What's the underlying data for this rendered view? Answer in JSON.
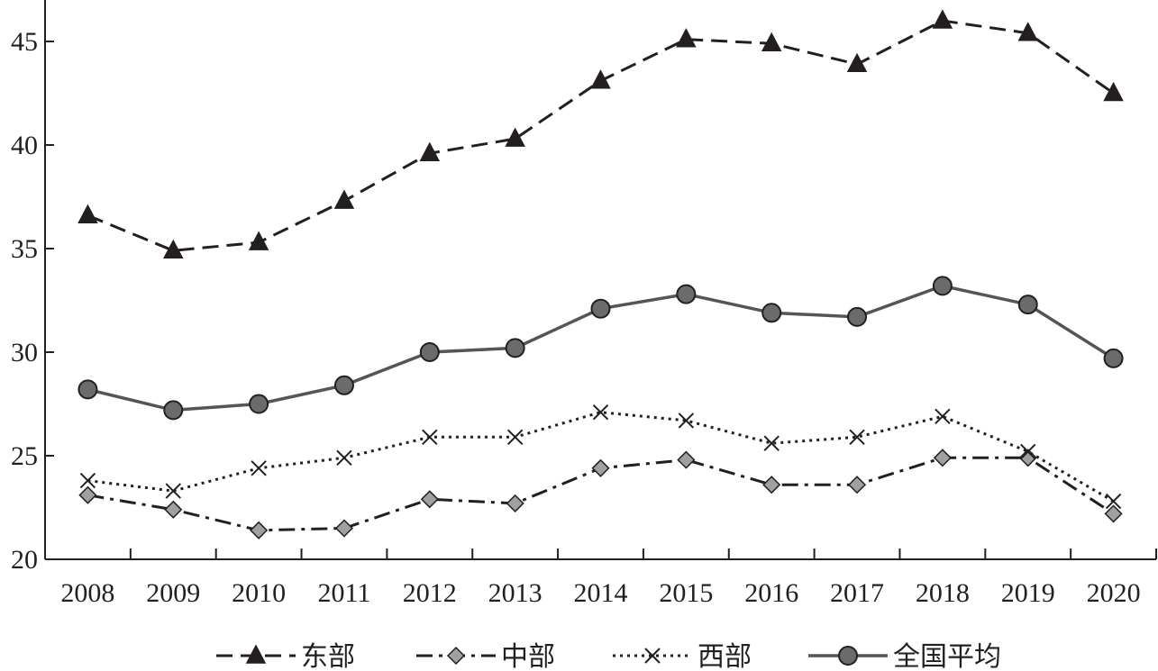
{
  "chart_data": {
    "type": "line",
    "x": [
      "2008",
      "2009",
      "2010",
      "2011",
      "2012",
      "2013",
      "2014",
      "2015",
      "2016",
      "2017",
      "2018",
      "2019",
      "2020"
    ],
    "ylim": [
      20,
      47
    ],
    "yticks": [
      20,
      25,
      30,
      35,
      40,
      45
    ],
    "grid": false,
    "legend_position": "bottom",
    "series": [
      {
        "name": "东部",
        "marker": "triangle",
        "dash": "long-dash",
        "color": "#231f20",
        "values": [
          36.6,
          34.9,
          35.3,
          37.3,
          39.6,
          40.3,
          43.1,
          45.1,
          44.9,
          43.9,
          46.0,
          45.4,
          42.5
        ]
      },
      {
        "name": "中部",
        "marker": "diamond",
        "dash": "dash-dot",
        "color": "#231f20",
        "marker_fill": "#a0a0a0",
        "values": [
          23.1,
          22.4,
          21.4,
          21.5,
          22.9,
          22.7,
          24.4,
          24.8,
          23.6,
          23.6,
          24.9,
          24.9,
          22.2
        ]
      },
      {
        "name": "西部",
        "marker": "x",
        "dash": "dotted",
        "color": "#231f20",
        "values": [
          23.8,
          23.3,
          24.4,
          24.9,
          25.9,
          25.9,
          27.1,
          26.7,
          25.6,
          25.9,
          26.9,
          25.2,
          22.8
        ]
      },
      {
        "name": "全国平均",
        "marker": "circle",
        "dash": "solid",
        "color": "#555555",
        "marker_fill": "#6b6b6b",
        "values": [
          28.2,
          27.2,
          27.5,
          28.4,
          30.0,
          30.2,
          32.1,
          32.8,
          31.9,
          31.7,
          33.2,
          32.3,
          29.7
        ]
      }
    ]
  }
}
